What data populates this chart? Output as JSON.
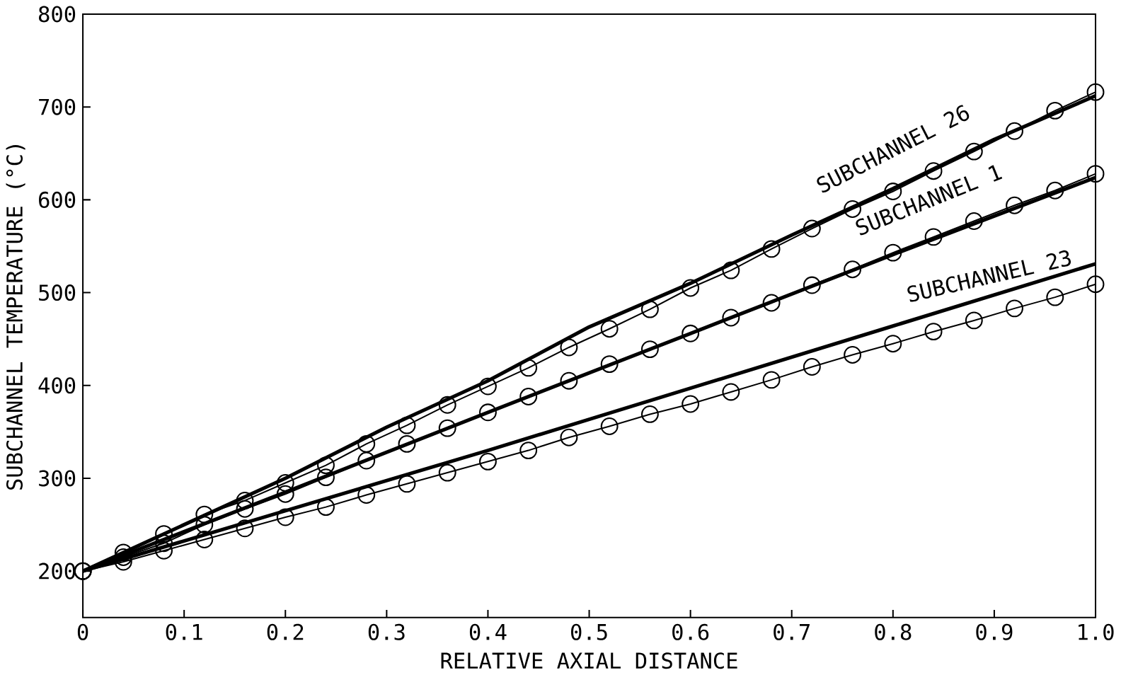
{
  "chart_data": {
    "type": "line",
    "xlabel": "RELATIVE AXIAL DISTANCE",
    "ylabel": "SUBCHANNEL TEMPERATURE (°C)",
    "xlim": [
      0,
      1.0
    ],
    "ylim": [
      150,
      800
    ],
    "xticks": [
      0,
      0.1,
      0.2,
      0.3,
      0.4,
      0.5,
      0.6,
      0.7,
      0.8,
      0.9,
      {
        "value": 1.0,
        "label": "1.0"
      }
    ],
    "yticks": [
      200,
      300,
      400,
      500,
      600,
      700,
      800
    ],
    "grid": false,
    "legend": false,
    "series": [
      {
        "color": "#000000",
        "marker": "none",
        "x": [
          0,
          0.1,
          0.2,
          0.3,
          0.4,
          0.5,
          0.6,
          0.7,
          0.8,
          0.9,
          1.0
        ],
        "values": [
          200,
          250,
          300,
          355,
          405,
          463,
          510,
          562,
          612,
          665,
          712
        ]
      },
      {
        "color": "#000000",
        "marker": "circle",
        "x": [
          0,
          0.04,
          0.08,
          0.12,
          0.16,
          0.2,
          0.24,
          0.28,
          0.32,
          0.36,
          0.4,
          0.44,
          0.48,
          0.52,
          0.56,
          0.6,
          0.64,
          0.68,
          0.72,
          0.76,
          0.8,
          0.84,
          0.88,
          0.92,
          0.96,
          1.0
        ],
        "values": [
          200,
          220,
          240,
          261,
          276,
          295,
          314,
          337,
          357,
          379,
          399,
          419,
          441,
          461,
          482,
          505,
          524,
          547,
          569,
          590,
          609,
          631,
          652,
          674,
          696,
          716
        ]
      },
      {
        "color": "#000000",
        "marker": "none",
        "x": [
          0,
          0.2,
          0.4,
          0.6,
          0.8,
          1.0
        ],
        "values": [
          200,
          285,
          371,
          456,
          541,
          624
        ]
      },
      {
        "color": "#000000",
        "marker": "circle",
        "x": [
          0,
          0.04,
          0.08,
          0.12,
          0.16,
          0.2,
          0.24,
          0.28,
          0.32,
          0.36,
          0.4,
          0.44,
          0.48,
          0.52,
          0.56,
          0.6,
          0.64,
          0.68,
          0.72,
          0.76,
          0.8,
          0.84,
          0.88,
          0.92,
          0.96,
          1.0
        ],
        "values": [
          200,
          215,
          230,
          250,
          267,
          283,
          301,
          319,
          337,
          354,
          371,
          388,
          405,
          423,
          439,
          456,
          473,
          489,
          508,
          525,
          543,
          560,
          577,
          594,
          610,
          628
        ]
      },
      {
        "color": "#000000",
        "marker": "none",
        "x": [
          0,
          0.2,
          0.4,
          0.6,
          0.8,
          1.0
        ],
        "values": [
          200,
          265,
          330,
          397,
          464,
          531
        ]
      },
      {
        "color": "#000000",
        "marker": "circle",
        "x": [
          0,
          0.04,
          0.08,
          0.12,
          0.16,
          0.2,
          0.24,
          0.28,
          0.32,
          0.36,
          0.4,
          0.44,
          0.48,
          0.52,
          0.56,
          0.6,
          0.64,
          0.68,
          0.72,
          0.76,
          0.8,
          0.84,
          0.88,
          0.92,
          0.96,
          1.0
        ],
        "values": [
          200,
          210,
          222,
          234,
          246,
          258,
          269,
          282,
          294,
          306,
          318,
          330,
          344,
          356,
          369,
          380,
          393,
          406,
          420,
          433,
          445,
          458,
          470,
          483,
          495,
          509
        ]
      }
    ],
    "annotations": [
      "SUBCHANNEL 26",
      "SUBCHANNEL 1",
      "SUBCHANNEL 23"
    ]
  }
}
